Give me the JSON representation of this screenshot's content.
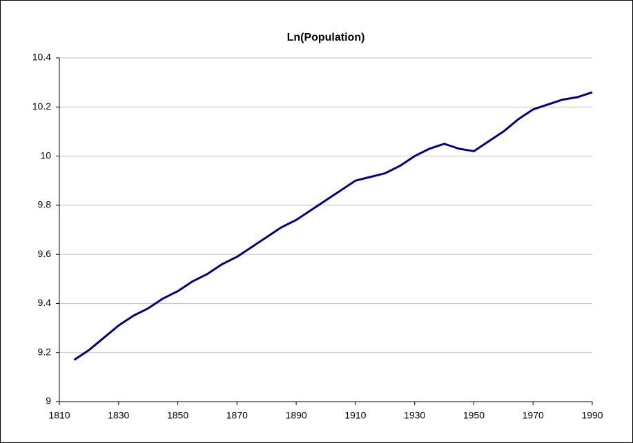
{
  "chart_data": {
    "type": "line",
    "title": "Ln(Population)",
    "x": [
      1815,
      1820,
      1825,
      1830,
      1835,
      1840,
      1845,
      1850,
      1855,
      1860,
      1865,
      1870,
      1875,
      1880,
      1885,
      1890,
      1895,
      1900,
      1905,
      1910,
      1915,
      1920,
      1925,
      1930,
      1935,
      1940,
      1945,
      1950,
      1955,
      1960,
      1965,
      1970,
      1975,
      1980,
      1985,
      1990
    ],
    "values": [
      9.17,
      9.21,
      9.26,
      9.31,
      9.35,
      9.38,
      9.42,
      9.45,
      9.49,
      9.52,
      9.56,
      9.59,
      9.63,
      9.67,
      9.71,
      9.74,
      9.78,
      9.82,
      9.86,
      9.9,
      9.915,
      9.93,
      9.96,
      10.0,
      10.03,
      10.05,
      10.03,
      10.02,
      10.06,
      10.1,
      10.15,
      10.19,
      10.21,
      10.23,
      10.24,
      10.26
    ],
    "color": "#000080",
    "xlim": [
      1810,
      1990
    ],
    "xticks": [
      1810,
      1830,
      1850,
      1870,
      1890,
      1910,
      1930,
      1950,
      1970,
      1990
    ],
    "ylim": [
      9,
      10.4
    ],
    "yticks": [
      9,
      9.2,
      9.4,
      9.6,
      9.8,
      10,
      10.2,
      10.4
    ],
    "grid": true
  }
}
